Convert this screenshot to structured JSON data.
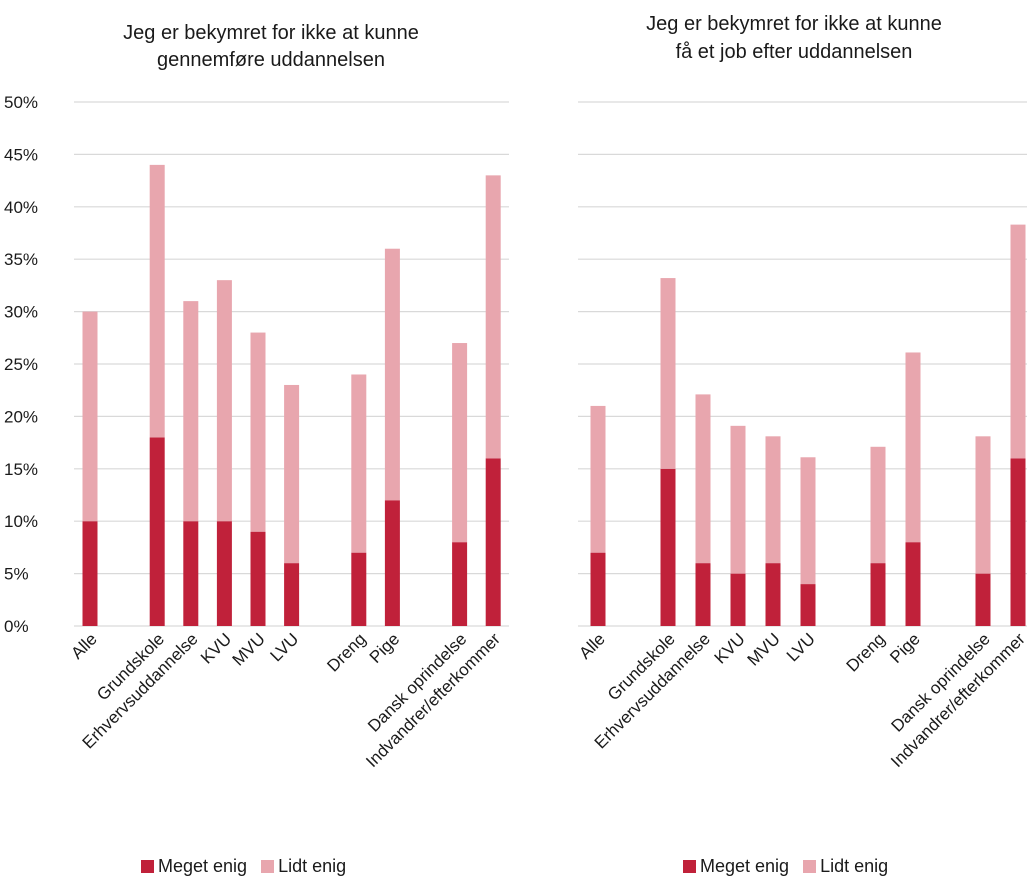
{
  "colors": {
    "meget": "#c0213a",
    "lidt": "#e8a6ae",
    "grid": "#d9d9d9",
    "text": "#1a1a1a"
  },
  "legend": {
    "meget_label": "Meget enig",
    "lidt_label": "Lidt enig"
  },
  "chart_data": [
    {
      "type": "bar",
      "stacked": true,
      "title": [
        "Jeg er bekymret for ikke at kunne",
        "gennemføre uddannelsen"
      ],
      "categories": [
        "Alle",
        "",
        "Grundskole",
        "Erhvervsuddannelse",
        "KVU",
        "MVU",
        "LVU",
        "",
        "Dreng",
        "Pige",
        "",
        "Dansk oprindelse",
        "Indvandrer/efterkommer"
      ],
      "series": [
        {
          "name": "Meget enig",
          "values": [
            10,
            null,
            18,
            10,
            10,
            9,
            6,
            null,
            7,
            12,
            null,
            8,
            16
          ]
        },
        {
          "name": "Lidt enig",
          "values": [
            20,
            null,
            26,
            21,
            23,
            19,
            17,
            null,
            17,
            24,
            null,
            19,
            27
          ]
        }
      ],
      "ylim": [
        0,
        50
      ],
      "yticks": [
        "0%",
        "5%",
        "10%",
        "15%",
        "20%",
        "25%",
        "30%",
        "35%",
        "40%",
        "45%",
        "50%"
      ],
      "show_yticks": true,
      "grid": true
    },
    {
      "type": "bar",
      "stacked": true,
      "title": [
        "Jeg er bekymret for ikke at kunne",
        "få et job efter uddannelsen"
      ],
      "categories": [
        "Alle",
        "",
        "Grundskole",
        "Erhvervsuddannelse",
        "KVU",
        "MVU",
        "LVU",
        "",
        "Dreng",
        "Pige",
        "",
        "Dansk oprindelse",
        "Indvandrer/efterkommer"
      ],
      "series": [
        {
          "name": "Meget enig",
          "values": [
            7,
            null,
            15,
            6,
            5,
            6,
            4,
            null,
            6,
            8,
            null,
            5,
            16
          ]
        },
        {
          "name": "Lidt enig",
          "values": [
            14,
            null,
            18.2,
            16.1,
            14.1,
            12.1,
            12.1,
            null,
            11.1,
            18.1,
            null,
            13.1,
            22.3
          ]
        }
      ],
      "ylim": [
        0,
        50
      ],
      "yticks": [],
      "show_yticks": false,
      "grid": true
    }
  ]
}
